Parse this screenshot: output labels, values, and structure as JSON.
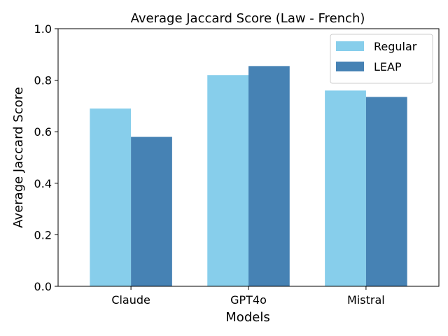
{
  "chart_data": {
    "type": "bar",
    "title": "Average Jaccard Score (Law - French)",
    "xlabel": "Models",
    "ylabel": "Average Jaccard Score",
    "categories": [
      "Claude",
      "GPT4o",
      "Mistral"
    ],
    "ylim": [
      0,
      1.0
    ],
    "yticks": [
      "0.0",
      "0.2",
      "0.4",
      "0.6",
      "0.8",
      "1.0"
    ],
    "grid": false,
    "legend_position": "top-right",
    "series": [
      {
        "name": "Regular",
        "values": [
          0.69,
          0.82,
          0.76
        ],
        "color": "#87CEEB"
      },
      {
        "name": "LEAP",
        "values": [
          0.58,
          0.855,
          0.735
        ],
        "color": "#4682B4"
      }
    ]
  }
}
